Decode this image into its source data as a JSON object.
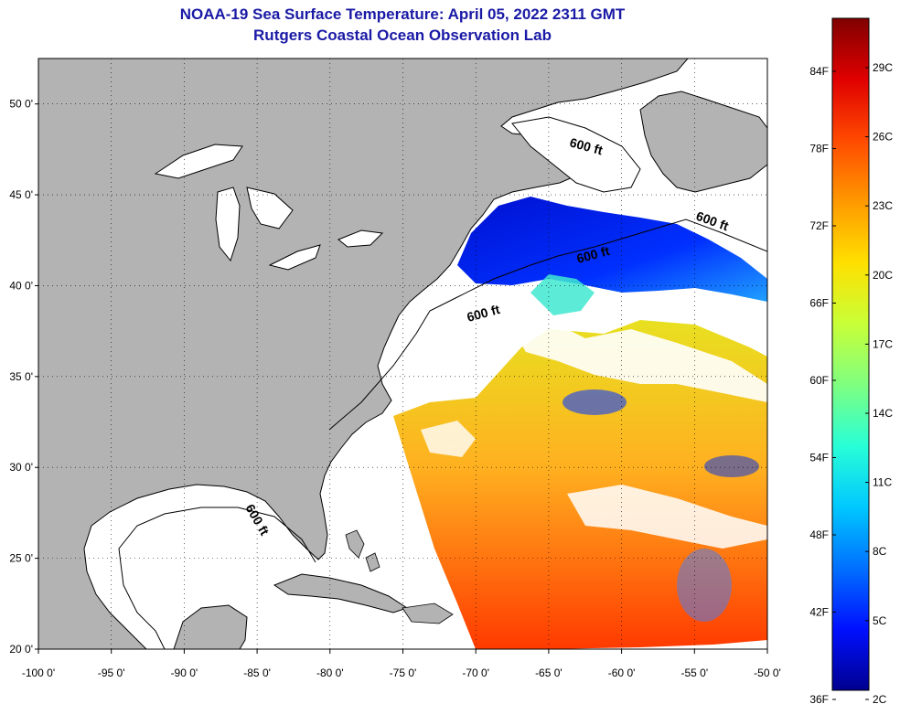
{
  "title": {
    "line1": "NOAA-19 Sea Surface Temperature:  April 05, 2022 2311 GMT",
    "line2": "Rutgers Coastal Ocean Observation Lab"
  },
  "map": {
    "lon_range": [
      -100,
      -50
    ],
    "lat_range": [
      20,
      52.5
    ],
    "x_ticks": [
      "-100 0'",
      "-95 0'",
      "-90 0'",
      "-85 0'",
      "-80 0'",
      "-75 0'",
      "-70 0'",
      "-65 0'",
      "-60 0'",
      "-55 0'",
      "-50 0'"
    ],
    "y_ticks": [
      "50 0'",
      "45 0'",
      "40 0'",
      "35 0'",
      "30 0'",
      "25 0'",
      "20 0'"
    ],
    "depth_labels": [
      "600 ft",
      "600 ft",
      "600 ft",
      "600 ft",
      "600 ft"
    ],
    "colors": {
      "land": "#b3b3b3",
      "ocean": "#ffffff",
      "coast": "#000000"
    }
  },
  "legend": {
    "fahrenheit": [
      "84F",
      "78F",
      "72F",
      "66F",
      "60F",
      "54F",
      "48F",
      "42F",
      "36F"
    ],
    "celsius": [
      "29C",
      "26C",
      "23C",
      "20C",
      "17C",
      "14C",
      "11C",
      "8C",
      "5C",
      "2C"
    ],
    "colors": [
      "#800000",
      "#e00000",
      "#ff4a00",
      "#ff9900",
      "#ffe000",
      "#c8ff37",
      "#7fff80",
      "#28ffd7",
      "#00c8ff",
      "#0070ff",
      "#0010ff",
      "#00008f"
    ]
  }
}
